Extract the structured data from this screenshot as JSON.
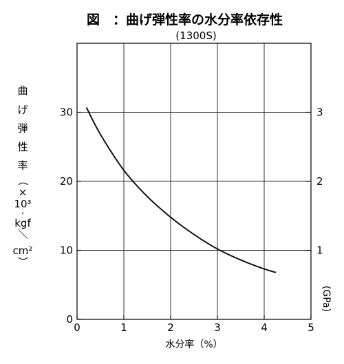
{
  "chart_data": {
    "type": "line",
    "title": "図　：曲げ弾性率の水分率依存性",
    "subtitle": "(1300S)",
    "xlabel": "水分率（%）",
    "ylabel_chars": [
      "曲",
      "げ",
      "弾",
      "性",
      "率",
      "（",
      "×",
      "10³",
      "·",
      "kgf",
      "／",
      "cm²",
      "）"
    ],
    "y2label": "(GPa)",
    "xlim": [
      0,
      5
    ],
    "ylim": [
      0,
      40
    ],
    "x_ticks": [
      "0",
      "1",
      "2",
      "3",
      "4",
      "5"
    ],
    "y_ticks": [
      "0",
      "10",
      "20",
      "30"
    ],
    "y2_ticks": [
      "1",
      "2",
      "3"
    ],
    "grid": true,
    "series": [
      {
        "x": [
          0.2,
          0.5,
          1.0,
          1.5,
          2.0,
          2.5,
          3.0,
          3.5,
          4.0,
          4.25
        ],
        "y": [
          30.7,
          26.8,
          21.6,
          17.8,
          14.8,
          12.3,
          10.2,
          8.6,
          7.3,
          6.8
        ]
      }
    ]
  }
}
